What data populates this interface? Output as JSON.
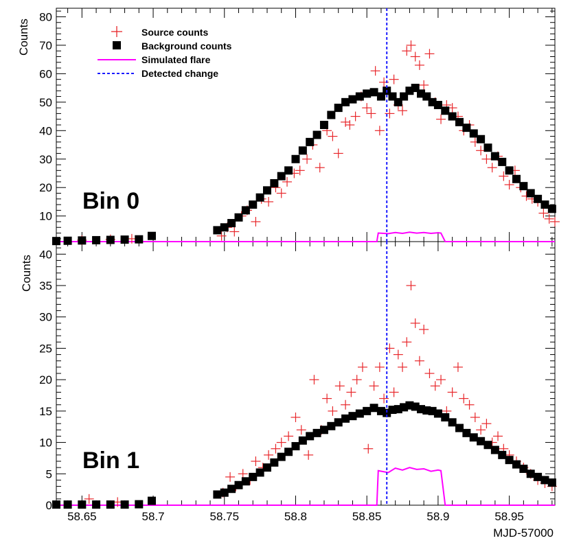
{
  "chart_data": [
    {
      "type": "scatter",
      "panel": "Bin 0",
      "ylabel": "Counts",
      "xlabel": "",
      "xlim": [
        58.632,
        58.982
      ],
      "ylim": [
        1,
        83
      ],
      "yticks": [
        10,
        20,
        30,
        40,
        50,
        60,
        70,
        80
      ],
      "detected_change_x": 58.864,
      "legend": {
        "placement": "top-left",
        "entries": [
          "Source counts",
          "Background counts",
          "Simulated flare",
          "Detected change"
        ]
      },
      "series": [
        {
          "name": "Background counts",
          "style": "square",
          "color": "#000000",
          "x": [
            58.632,
            58.64,
            58.65,
            58.66,
            58.67,
            58.68,
            58.69,
            58.699,
            58.745,
            58.75,
            58.755,
            58.76,
            58.765,
            58.77,
            58.775,
            58.78,
            58.785,
            58.79,
            58.795,
            58.8,
            58.805,
            58.81,
            58.815,
            58.82,
            58.825,
            58.83,
            58.835,
            58.84,
            58.845,
            58.85,
            58.855,
            58.86,
            58.864,
            58.868,
            58.872,
            58.876,
            58.88,
            58.884,
            58.888,
            58.892,
            58.896,
            58.9,
            58.905,
            58.91,
            58.915,
            58.92,
            58.925,
            58.93,
            58.935,
            58.94,
            58.945,
            58.95,
            58.955,
            58.96,
            58.965,
            58.97,
            58.975,
            58.98
          ],
          "y": [
            1.2,
            1.3,
            1.4,
            1.5,
            1.6,
            1.7,
            1.8,
            3,
            5,
            6,
            7.5,
            9.5,
            12,
            14,
            16.5,
            19,
            21.5,
            24,
            26,
            30,
            33,
            36,
            38.5,
            42,
            45.5,
            48,
            50,
            51,
            52,
            53,
            53.5,
            52,
            54,
            52,
            50,
            52,
            54,
            55,
            53,
            52,
            50,
            49,
            47,
            45,
            43,
            41,
            39,
            37,
            34,
            31,
            29,
            26,
            23,
            20.5,
            18,
            16,
            14,
            12.5
          ]
        },
        {
          "name": "Source counts",
          "style": "cross",
          "color": "#e8262a",
          "x": [
            58.65,
            58.67,
            58.685,
            58.748,
            58.752,
            58.757,
            58.762,
            58.766,
            58.772,
            58.776,
            58.781,
            58.786,
            58.79,
            58.794,
            58.799,
            58.803,
            58.808,
            58.812,
            58.817,
            58.822,
            58.826,
            58.83,
            58.835,
            58.838,
            58.842,
            58.846,
            58.85,
            58.853,
            58.856,
            58.859,
            58.862,
            58.866,
            58.869,
            58.872,
            58.875,
            58.878,
            58.881,
            58.884,
            58.887,
            58.89,
            58.894,
            58.898,
            58.902,
            58.906,
            58.91,
            58.914,
            58.918,
            58.922,
            58.926,
            58.93,
            58.934,
            58.938,
            58.942,
            58.946,
            58.95,
            58.954,
            58.958,
            58.962,
            58.966,
            58.97,
            58.974,
            58.978,
            58.982
          ],
          "y": [
            1.5,
            1.8,
            2,
            3,
            6,
            4.5,
            10,
            12,
            8,
            16,
            15,
            20,
            18,
            22,
            25,
            26,
            30,
            35,
            27,
            40,
            38,
            32,
            43,
            42,
            45,
            52,
            48,
            46,
            61,
            40,
            57,
            46,
            58,
            49,
            47,
            68,
            70,
            66,
            63,
            56,
            67,
            50,
            44,
            49,
            48,
            45,
            40,
            42,
            36,
            33,
            30,
            27,
            31,
            24,
            21,
            26,
            20,
            17,
            16,
            15,
            11,
            9,
            8
          ]
        }
      ],
      "simulated_flare": {
        "name": "Simulated flare",
        "color": "#ff00ff",
        "x": [
          58.632,
          58.857,
          58.858,
          58.865,
          58.87,
          58.875,
          58.88,
          58.885,
          58.89,
          58.895,
          58.9,
          58.902,
          58.905,
          58.982
        ],
        "y": [
          1,
          1,
          4,
          3.8,
          4.2,
          3.9,
          4.3,
          4.0,
          4.2,
          3.9,
          4.1,
          4,
          1,
          1
        ]
      }
    },
    {
      "type": "scatter",
      "panel": "Bin 1",
      "ylabel": "Counts",
      "xlabel": "MJD-57000",
      "xlim": [
        58.632,
        58.982
      ],
      "ylim": [
        0,
        42
      ],
      "yticks": [
        0,
        5,
        10,
        15,
        20,
        25,
        30,
        35,
        40
      ],
      "xticks": [
        58.65,
        58.7,
        58.75,
        58.8,
        58.85,
        58.9,
        58.95
      ],
      "xticklabels": [
        "58.65",
        "58.7",
        "58.75",
        "58.8",
        "58.85",
        "58.9",
        "58.95"
      ],
      "detected_change_x": 58.864,
      "series": [
        {
          "name": "Background counts",
          "style": "square",
          "color": "#000000",
          "x": [
            58.632,
            58.64,
            58.65,
            58.66,
            58.67,
            58.68,
            58.69,
            58.699,
            58.745,
            58.75,
            58.755,
            58.76,
            58.765,
            58.77,
            58.775,
            58.78,
            58.785,
            58.79,
            58.795,
            58.8,
            58.805,
            58.81,
            58.815,
            58.82,
            58.825,
            58.83,
            58.835,
            58.84,
            58.845,
            58.85,
            58.855,
            58.86,
            58.864,
            58.868,
            58.872,
            58.876,
            58.88,
            58.884,
            58.888,
            58.892,
            58.896,
            58.9,
            58.905,
            58.91,
            58.915,
            58.92,
            58.925,
            58.93,
            58.935,
            58.94,
            58.945,
            58.95,
            58.955,
            58.96,
            58.965,
            58.97,
            58.975,
            58.98
          ],
          "y": [
            0.1,
            0.1,
            0.1,
            0.1,
            0.1,
            0.1,
            0.15,
            0.7,
            1.7,
            2,
            2.6,
            3.2,
            3.8,
            4.5,
            5.2,
            6,
            6.8,
            7.7,
            8.5,
            9.4,
            10.3,
            11,
            11.5,
            12,
            12.6,
            13.2,
            13.8,
            14.2,
            14.6,
            15,
            15.5,
            15,
            14.7,
            15.2,
            15.3,
            15.6,
            15.9,
            15.7,
            15.3,
            15.1,
            15,
            14.6,
            14,
            13.2,
            12.3,
            11.5,
            10.8,
            10.2,
            9.6,
            8.8,
            8,
            7.2,
            6.5,
            5.8,
            5,
            4.5,
            4,
            3.6
          ]
        },
        {
          "name": "Source counts",
          "style": "cross",
          "color": "#e8262a",
          "x": [
            58.655,
            58.675,
            58.749,
            58.754,
            58.758,
            58.763,
            58.768,
            58.772,
            58.777,
            58.781,
            58.786,
            58.79,
            58.795,
            58.8,
            58.804,
            58.809,
            58.813,
            58.818,
            58.822,
            58.826,
            58.831,
            58.835,
            58.839,
            58.843,
            58.847,
            58.851,
            58.855,
            58.859,
            58.862,
            58.866,
            58.869,
            58.872,
            58.875,
            58.878,
            58.881,
            58.884,
            58.887,
            58.89,
            58.894,
            58.898,
            58.902,
            58.906,
            58.91,
            58.914,
            58.918,
            58.922,
            58.926,
            58.93,
            58.934,
            58.938,
            58.942,
            58.946,
            58.95,
            58.955,
            58.96,
            58.965,
            58.97,
            58.975,
            58.98
          ],
          "y": [
            1,
            0.5,
            2,
            4.5,
            3,
            5,
            4,
            7,
            6,
            8,
            9,
            10,
            11,
            14,
            12,
            8,
            20,
            12,
            17,
            15,
            19,
            16,
            18,
            20,
            22,
            9,
            19,
            22,
            17,
            25,
            18,
            24,
            22,
            26,
            35,
            29,
            23,
            28,
            21,
            19,
            20,
            15,
            18,
            22,
            17,
            16,
            14,
            12,
            13,
            10,
            11,
            9,
            8,
            7,
            6,
            5,
            4,
            3.5,
            3
          ]
        }
      ],
      "simulated_flare": {
        "name": "Simulated flare",
        "color": "#ff00ff",
        "x": [
          58.632,
          58.857,
          58.858,
          58.865,
          58.87,
          58.875,
          58.88,
          58.885,
          58.89,
          58.895,
          58.9,
          58.902,
          58.905,
          58.982
        ],
        "y": [
          0,
          0,
          5.5,
          5.2,
          5.9,
          5.6,
          6.0,
          5.7,
          5.8,
          5.4,
          5.6,
          5.5,
          0,
          0
        ]
      }
    }
  ],
  "labels": {
    "panel0_label": "Bin 0",
    "panel1_label": "Bin 1",
    "ylabel0": "Counts",
    "ylabel1": "Counts",
    "xlabel": "MJD-57000",
    "legend_source": "Source counts",
    "legend_background": "Background counts",
    "legend_flare": "Simulated flare",
    "legend_change": "Detected change"
  }
}
